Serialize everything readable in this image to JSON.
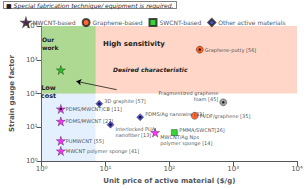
{
  "chart_data": {
    "type": "scatter",
    "xlabel": "Unit price of active material ($/g)",
    "ylabel": "Strain gauge factor",
    "log": true,
    "grid": false,
    "legend": "top",
    "xlim": [
      1,
      10000
    ],
    "ylim": [
      1,
      10000
    ],
    "xticks": [
      {
        "value": 1,
        "label": "10⁰"
      },
      {
        "value": 10,
        "label": "10¹"
      },
      {
        "value": 100,
        "label": "10²"
      },
      {
        "value": 1000,
        "label": "10³"
      },
      {
        "value": 10000,
        "label": "10⁴"
      }
    ],
    "yticks": [
      {
        "value": 1,
        "label": "10⁰"
      },
      {
        "value": 10,
        "label": "10¹"
      },
      {
        "value": 100,
        "label": "10²"
      },
      {
        "value": 1000,
        "label": "10³"
      },
      {
        "value": 10000,
        "label": "10⁴"
      }
    ],
    "note": "■ Special fabrication technique/ equipment is required.",
    "regions": [
      {
        "label": "High sensitivity",
        "color": "#ff7744",
        "xlim": [
          1,
          10000
        ],
        "ylim": [
          100,
          10000
        ]
      },
      {
        "label": "Low\ncost",
        "color": "#aaccff",
        "xlim": [
          1,
          7
        ],
        "ylim": [
          1,
          10000
        ]
      },
      {
        "label": "Our\nwork",
        "color": "#88dd66",
        "xlim": [
          1,
          7
        ],
        "ylim": [
          100,
          10000
        ]
      }
    ],
    "annotations": [
      {
        "text": "Desired characteristic",
        "arrow_from": [
          15,
          130
        ],
        "arrow_to": [
          3.5,
          230
        ]
      }
    ],
    "series": [
      {
        "color": "#00bb00",
        "marker": "star",
        "points": [
          {
            "x": 2.0,
            "y": 500,
            "special": false
          }
        ]
      },
      {
        "name": "MWCNT-based",
        "color": "magenta",
        "marker": "star",
        "points": [
          {
            "x": 2.0,
            "y": 35,
            "label": "PDMS/MWCNT/CB [11]",
            "special": true
          },
          {
            "x": 2.0,
            "y": 15,
            "label": "PDMS/MWCNT [27]",
            "special": false
          },
          {
            "x": 2.0,
            "y": 4,
            "label": "PUMWCNT [55]",
            "special": false
          },
          {
            "x": 2.0,
            "y": 2,
            "label": "MWCNT polymer sponge [41]",
            "special": false
          },
          {
            "x": 60.0,
            "y": 7,
            "label": "MWCNT/Ag Nps\npolymer sponge [14]",
            "special": false
          }
        ]
      },
      {
        "name": "Graphene-based",
        "color": "#ff4400",
        "marker": "circle",
        "points": [
          {
            "x": 300.0,
            "y": 2000,
            "label": "Graphene-putty [56]",
            "special": true
          },
          {
            "x": 250.0,
            "y": 22,
            "label": "PVDF/graphene [35]",
            "special": false
          }
        ]
      },
      {
        "name": "SWCNT-based",
        "color": "#00cc00",
        "marker": "square",
        "points": [
          {
            "x": 120.0,
            "y": 7,
            "label": "PMMA/SWCNT[26]",
            "special": false
          }
        ]
      },
      {
        "name": "Other active materials",
        "color": "#2222cc",
        "marker": "diamond",
        "points": [
          {
            "x": 8.0,
            "y": 50,
            "label": "3D graphite [57]",
            "special": true
          },
          {
            "x": 12.0,
            "y": 12,
            "label": "Interlocked PUA\nnanofiber [13]",
            "special": true
          },
          {
            "x": 35.0,
            "y": 20,
            "label": "PDMS/Ag nanowire [33]",
            "special": true
          }
        ]
      },
      {
        "color": "#888888",
        "marker": "circle",
        "points": [
          {
            "x": 700.0,
            "y": 55,
            "label": "Fragmentized graphene\nfoam [45]",
            "special": true
          }
        ]
      }
    ]
  }
}
